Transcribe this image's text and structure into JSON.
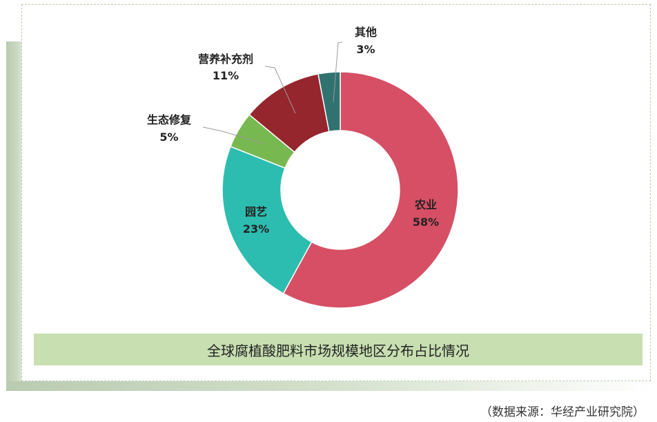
{
  "chart_data": {
    "type": "pie",
    "donut": true,
    "title": "全球腐植酸肥料市场规模地区分布占比情况",
    "slices": [
      {
        "label": "农业",
        "value": 58,
        "display": "58%",
        "color": "#d64f65"
      },
      {
        "label": "园艺",
        "value": 23,
        "display": "23%",
        "color": "#2dbdb0"
      },
      {
        "label": "生态修复",
        "value": 5,
        "display": "5%",
        "color": "#78b850"
      },
      {
        "label": "营养补充剂",
        "value": 11,
        "display": "11%",
        "color": "#96262d"
      },
      {
        "label": "其他",
        "value": 3,
        "display": "3%",
        "color": "#2f7270"
      }
    ]
  },
  "source": "（数据来源：华经产业研究院）"
}
